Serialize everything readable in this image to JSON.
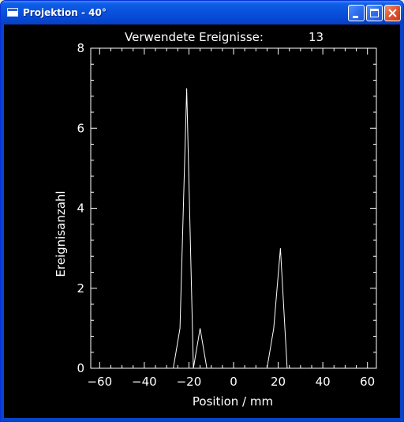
{
  "window": {
    "title": "Projektion - 40°",
    "icon": "app-window-icon",
    "controls": [
      "minimize",
      "maximize",
      "close"
    ]
  },
  "plot": {
    "header_label": "Verwendete Ereignisse:",
    "header_value": "13"
  },
  "chart_data": {
    "type": "line",
    "title": "Verwendete Ereignisse:    13",
    "xlabel": "Position / mm",
    "ylabel": "Ereignisanzahl",
    "xlim": [
      -64,
      64
    ],
    "ylim": [
      0,
      8
    ],
    "xticks": [
      -60,
      -40,
      -20,
      0,
      20,
      40,
      60
    ],
    "xtick_labels": [
      "−60",
      "−40",
      "−20",
      "0",
      "20",
      "40",
      "60"
    ],
    "yticks": [
      0,
      2,
      4,
      6,
      8
    ],
    "ytick_labels": [
      "0",
      "2",
      "4",
      "6",
      "8"
    ],
    "grid": false,
    "background": "#000000",
    "foreground": "#ffffff",
    "series": [
      {
        "x": [
          -60,
          -54,
          -48,
          -42,
          -36,
          -30,
          -27,
          -24,
          -21,
          -18,
          -15,
          -12,
          -9,
          -6,
          -3,
          0,
          3,
          6,
          9,
          12,
          15,
          18,
          21,
          24,
          27,
          30,
          36,
          42,
          48,
          54,
          60
        ],
        "y": [
          0,
          0,
          0,
          0,
          0,
          0,
          0,
          1,
          7,
          0,
          1,
          0,
          0,
          0,
          0,
          0,
          0,
          0,
          0,
          0,
          0,
          1,
          3,
          0,
          0,
          0,
          0,
          0,
          0,
          0,
          0
        ]
      }
    ]
  }
}
